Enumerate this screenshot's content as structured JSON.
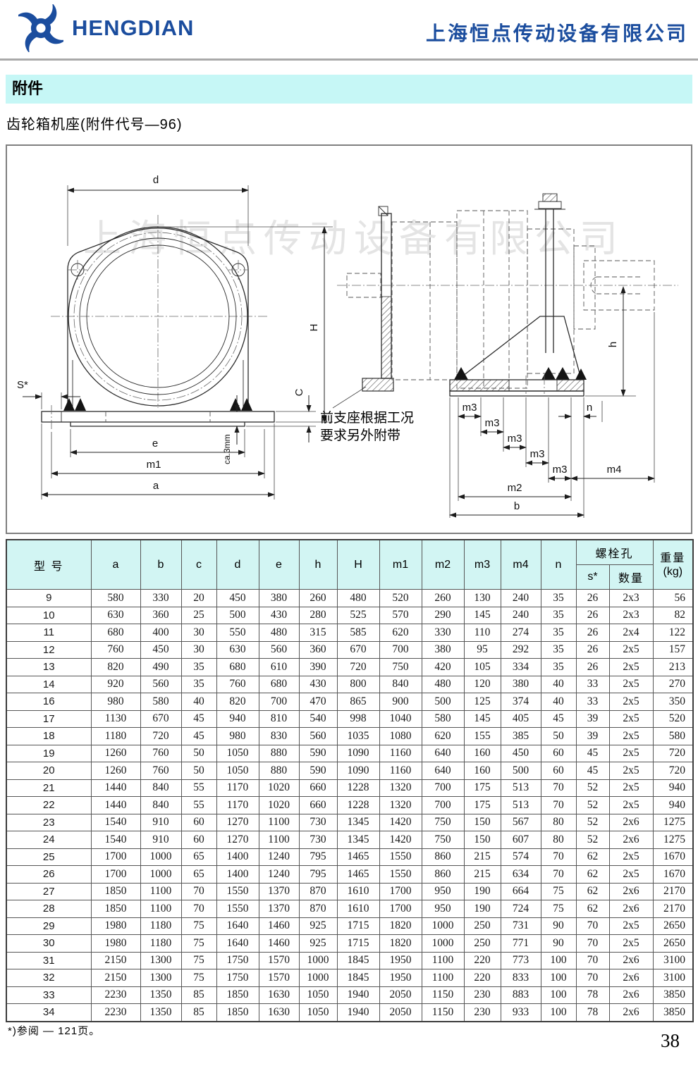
{
  "header": {
    "brand": "HENGDIAN",
    "company": "上海恒点传动设备有限公司"
  },
  "section": {
    "category": "附件",
    "title": "齿轮箱机座(附件代号—96)"
  },
  "drawing": {
    "watermark": "上海恒点传动设备有限公司",
    "note_line1": "前支座根据工况",
    "note_line2": "要求另外附带",
    "labels": {
      "d": "d",
      "H": "H",
      "C": "C",
      "S": "S*",
      "e": "e",
      "m1": "m1",
      "a": "a",
      "ca3": "ca.3mm",
      "h": "h",
      "m3": "m3",
      "n": "n",
      "m4": "m4",
      "m2": "m2",
      "b": "b"
    }
  },
  "table": {
    "headers": {
      "model": "型  号",
      "a": "a",
      "b": "b",
      "c": "c",
      "d": "d",
      "e": "e",
      "h": "h",
      "H": "H",
      "m1": "m1",
      "m2": "m2",
      "m3": "m3",
      "m4": "m4",
      "n": "n",
      "bolt": "螺栓孔",
      "s": "s*",
      "qty": "数量",
      "weight": "重量",
      "weight_unit": "(kg)"
    },
    "rows": [
      [
        9,
        580,
        330,
        20,
        450,
        380,
        260,
        480,
        520,
        260,
        130,
        240,
        35,
        26,
        "2x3",
        56
      ],
      [
        10,
        630,
        360,
        25,
        500,
        430,
        280,
        525,
        570,
        290,
        145,
        240,
        35,
        26,
        "2x3",
        82
      ],
      [
        11,
        680,
        400,
        30,
        550,
        480,
        315,
        585,
        620,
        330,
        110,
        274,
        35,
        26,
        "2x4",
        122
      ],
      [
        12,
        760,
        450,
        30,
        630,
        560,
        360,
        670,
        700,
        380,
        95,
        292,
        35,
        26,
        "2x5",
        157
      ],
      [
        13,
        820,
        490,
        35,
        680,
        610,
        390,
        720,
        750,
        420,
        105,
        334,
        35,
        26,
        "2x5",
        213
      ],
      [
        14,
        920,
        560,
        35,
        760,
        680,
        430,
        800,
        840,
        480,
        120,
        380,
        40,
        33,
        "2x5",
        270
      ],
      [
        16,
        980,
        580,
        40,
        820,
        700,
        470,
        865,
        900,
        500,
        125,
        374,
        40,
        33,
        "2x5",
        350
      ],
      [
        17,
        1130,
        670,
        45,
        940,
        810,
        540,
        998,
        1040,
        580,
        145,
        405,
        45,
        39,
        "2x5",
        520
      ],
      [
        18,
        1180,
        720,
        45,
        980,
        830,
        560,
        1035,
        1080,
        620,
        155,
        385,
        50,
        39,
        "2x5",
        580
      ],
      [
        19,
        1260,
        760,
        50,
        1050,
        880,
        590,
        1090,
        1160,
        640,
        160,
        450,
        60,
        45,
        "2x5",
        720
      ],
      [
        20,
        1260,
        760,
        50,
        1050,
        880,
        590,
        1090,
        1160,
        640,
        160,
        500,
        60,
        45,
        "2x5",
        720
      ],
      [
        21,
        1440,
        840,
        55,
        1170,
        1020,
        660,
        1228,
        1320,
        700,
        175,
        513,
        70,
        52,
        "2x5",
        940
      ],
      [
        22,
        1440,
        840,
        55,
        1170,
        1020,
        660,
        1228,
        1320,
        700,
        175,
        513,
        70,
        52,
        "2x5",
        940
      ],
      [
        23,
        1540,
        910,
        60,
        1270,
        1100,
        730,
        1345,
        1420,
        750,
        150,
        567,
        80,
        52,
        "2x6",
        1275
      ],
      [
        24,
        1540,
        910,
        60,
        1270,
        1100,
        730,
        1345,
        1420,
        750,
        150,
        607,
        80,
        52,
        "2x6",
        1275
      ],
      [
        25,
        1700,
        1000,
        65,
        1400,
        1240,
        795,
        1465,
        1550,
        860,
        215,
        574,
        70,
        62,
        "2x5",
        1670
      ],
      [
        26,
        1700,
        1000,
        65,
        1400,
        1240,
        795,
        1465,
        1550,
        860,
        215,
        634,
        70,
        62,
        "2x5",
        1670
      ],
      [
        27,
        1850,
        1100,
        70,
        1550,
        1370,
        870,
        1610,
        1700,
        950,
        190,
        664,
        75,
        62,
        "2x6",
        2170
      ],
      [
        28,
        1850,
        1100,
        70,
        1550,
        1370,
        870,
        1610,
        1700,
        950,
        190,
        724,
        75,
        62,
        "2x6",
        2170
      ],
      [
        29,
        1980,
        1180,
        75,
        1640,
        1460,
        925,
        1715,
        1820,
        1000,
        250,
        731,
        90,
        70,
        "2x5",
        2650
      ],
      [
        30,
        1980,
        1180,
        75,
        1640,
        1460,
        925,
        1715,
        1820,
        1000,
        250,
        771,
        90,
        70,
        "2x5",
        2650
      ],
      [
        31,
        2150,
        1300,
        75,
        1750,
        1570,
        1000,
        1845,
        1950,
        1100,
        220,
        773,
        100,
        70,
        "2x6",
        3100
      ],
      [
        32,
        2150,
        1300,
        75,
        1750,
        1570,
        1000,
        1845,
        1950,
        1100,
        220,
        833,
        100,
        70,
        "2x6",
        3100
      ],
      [
        33,
        2230,
        1350,
        85,
        1850,
        1630,
        1050,
        1940,
        2050,
        1150,
        230,
        883,
        100,
        78,
        "2x6",
        3850
      ],
      [
        34,
        2230,
        1350,
        85,
        1850,
        1630,
        1050,
        1940,
        2050,
        1150,
        230,
        933,
        100,
        78,
        "2x6",
        3850
      ]
    ]
  },
  "footer": {
    "footnote": "*)参阅 — 121页。",
    "page_number": "38"
  },
  "colors": {
    "brand_blue": "#1b4d9e",
    "bar_cyan": "#c6f7f6",
    "table_header_bg": "#d2f5f3"
  }
}
